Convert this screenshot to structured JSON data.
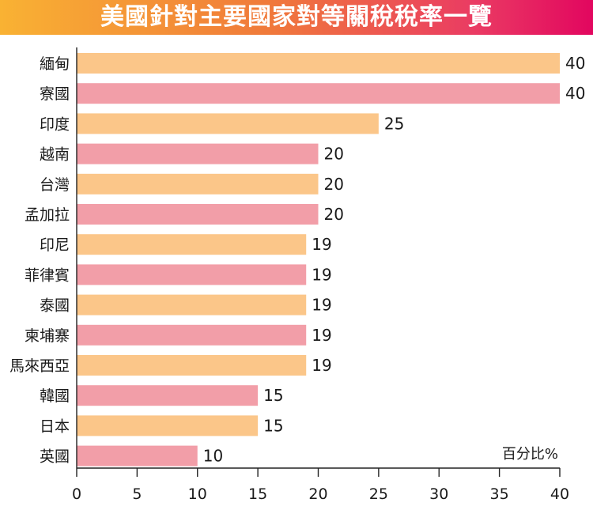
{
  "chart_data": {
    "type": "bar",
    "orientation": "horizontal",
    "title": "美國針對主要國家對等關稅稅率一覽",
    "unit_label": "百分比%",
    "categories": [
      "緬甸",
      "寮國",
      "印度",
      "越南",
      "台灣",
      "孟加拉",
      "印尼",
      "菲律賓",
      "泰國",
      "柬埔寨",
      "馬來西亞",
      "韓國",
      "日本",
      "英國"
    ],
    "values": [
      40,
      40,
      25,
      20,
      20,
      20,
      19,
      19,
      19,
      19,
      19,
      15,
      15,
      10
    ],
    "xlim": [
      0,
      40
    ],
    "xticks": [
      0,
      5,
      10,
      15,
      20,
      25,
      30,
      35,
      40
    ],
    "bar_colors": [
      "#fbc689",
      "#f29ea8"
    ],
    "grid": false
  }
}
